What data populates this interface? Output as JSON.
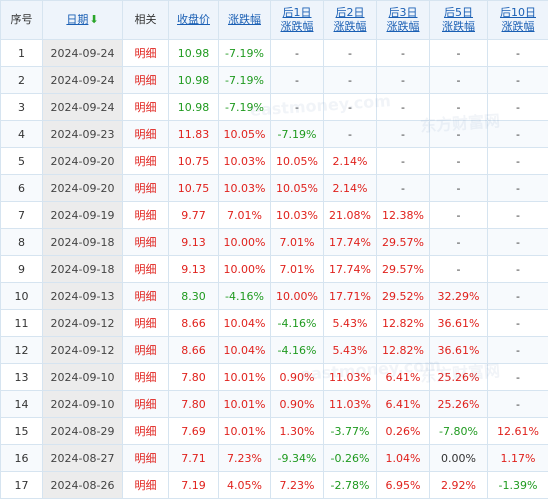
{
  "columns": [
    {
      "label": "序号",
      "type": "plain"
    },
    {
      "label": "日期",
      "type": "sort"
    },
    {
      "label": "相关",
      "type": "plain"
    },
    {
      "label": "收盘价",
      "type": "link"
    },
    {
      "label": "涨跌幅",
      "type": "link"
    },
    {
      "label": "后1日",
      "label2": "涨跌幅",
      "type": "link"
    },
    {
      "label": "后2日",
      "label2": "涨跌幅",
      "type": "link"
    },
    {
      "label": "后3日",
      "label2": "涨跌幅",
      "type": "link"
    },
    {
      "label": "后5日",
      "label2": "涨跌幅",
      "type": "link"
    },
    {
      "label": "后10日",
      "label2": "涨跌幅",
      "type": "link"
    }
  ],
  "sort_icon": "down-arrow-icon",
  "detail_label": "明细",
  "rows": [
    {
      "idx": "1",
      "date": "2024-09-24",
      "close": "10.98",
      "chg": "-7.19%",
      "d1": "-",
      "d2": "-",
      "d3": "-",
      "d5": "-",
      "d10": "-"
    },
    {
      "idx": "2",
      "date": "2024-09-24",
      "close": "10.98",
      "chg": "-7.19%",
      "d1": "-",
      "d2": "-",
      "d3": "-",
      "d5": "-",
      "d10": "-"
    },
    {
      "idx": "3",
      "date": "2024-09-24",
      "close": "10.98",
      "chg": "-7.19%",
      "d1": "-",
      "d2": "-",
      "d3": "-",
      "d5": "-",
      "d10": "-"
    },
    {
      "idx": "4",
      "date": "2024-09-23",
      "close": "11.83",
      "chg": "10.05%",
      "d1": "-7.19%",
      "d2": "-",
      "d3": "-",
      "d5": "-",
      "d10": "-"
    },
    {
      "idx": "5",
      "date": "2024-09-20",
      "close": "10.75",
      "chg": "10.03%",
      "d1": "10.05%",
      "d2": "2.14%",
      "d3": "-",
      "d5": "-",
      "d10": "-"
    },
    {
      "idx": "6",
      "date": "2024-09-20",
      "close": "10.75",
      "chg": "10.03%",
      "d1": "10.05%",
      "d2": "2.14%",
      "d3": "-",
      "d5": "-",
      "d10": "-"
    },
    {
      "idx": "7",
      "date": "2024-09-19",
      "close": "9.77",
      "chg": "7.01%",
      "d1": "10.03%",
      "d2": "21.08%",
      "d3": "12.38%",
      "d5": "-",
      "d10": "-"
    },
    {
      "idx": "8",
      "date": "2024-09-18",
      "close": "9.13",
      "chg": "10.00%",
      "d1": "7.01%",
      "d2": "17.74%",
      "d3": "29.57%",
      "d5": "-",
      "d10": "-"
    },
    {
      "idx": "9",
      "date": "2024-09-18",
      "close": "9.13",
      "chg": "10.00%",
      "d1": "7.01%",
      "d2": "17.74%",
      "d3": "29.57%",
      "d5": "-",
      "d10": "-"
    },
    {
      "idx": "10",
      "date": "2024-09-13",
      "close": "8.30",
      "chg": "-4.16%",
      "d1": "10.00%",
      "d2": "17.71%",
      "d3": "29.52%",
      "d5": "32.29%",
      "d10": "-"
    },
    {
      "idx": "11",
      "date": "2024-09-12",
      "close": "8.66",
      "chg": "10.04%",
      "d1": "-4.16%",
      "d2": "5.43%",
      "d3": "12.82%",
      "d5": "36.61%",
      "d10": "-"
    },
    {
      "idx": "12",
      "date": "2024-09-12",
      "close": "8.66",
      "chg": "10.04%",
      "d1": "-4.16%",
      "d2": "5.43%",
      "d3": "12.82%",
      "d5": "36.61%",
      "d10": "-"
    },
    {
      "idx": "13",
      "date": "2024-09-10",
      "close": "7.80",
      "chg": "10.01%",
      "d1": "0.90%",
      "d2": "11.03%",
      "d3": "6.41%",
      "d5": "25.26%",
      "d10": "-"
    },
    {
      "idx": "14",
      "date": "2024-09-10",
      "close": "7.80",
      "chg": "10.01%",
      "d1": "0.90%",
      "d2": "11.03%",
      "d3": "6.41%",
      "d5": "25.26%",
      "d10": "-"
    },
    {
      "idx": "15",
      "date": "2024-08-29",
      "close": "7.69",
      "chg": "10.01%",
      "d1": "1.30%",
      "d2": "-3.77%",
      "d3": "0.26%",
      "d5": "-7.80%",
      "d10": "12.61%"
    },
    {
      "idx": "16",
      "date": "2024-08-27",
      "close": "7.71",
      "chg": "7.23%",
      "d1": "-9.34%",
      "d2": "-0.26%",
      "d3": "1.04%",
      "d5": "0.00%",
      "d10": "1.17%"
    },
    {
      "idx": "17",
      "date": "2024-08-26",
      "close": "7.19",
      "chg": "4.05%",
      "d1": "7.23%",
      "d2": "-2.78%",
      "d3": "6.95%",
      "d5": "2.92%",
      "d10": "-1.39%"
    }
  ],
  "colors": {
    "up": "#e0211c",
    "down": "#1f9a1f",
    "link": "#1a5fb4",
    "header_bg": "#eef4fb",
    "date_bg": "#ececec",
    "border": "#d6e4f0"
  }
}
